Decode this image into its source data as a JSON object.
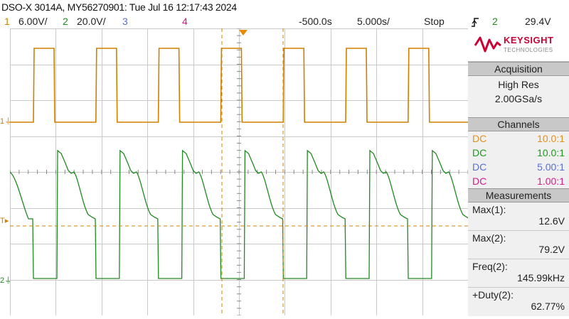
{
  "header": {
    "title": "DSO-X 3014A, MY56270901: Tue Jul 16 12:17:43 2024",
    "ch1_num": "1",
    "ch1_scale": "6.00V/",
    "ch2_num": "2",
    "ch2_scale": "20.0V/",
    "ch3_num": "3",
    "ch4_num": "4",
    "time_offset": "-500.0s",
    "time_scale": "5.000s/",
    "run_state": "Stop",
    "trigger_channel": "2",
    "trigger_level": "29.4V"
  },
  "colors": {
    "ch1": "#d08000",
    "ch2": "#1f8a1f",
    "ch3": "#5a6fd0",
    "ch4": "#cc1a8a",
    "brand": "#cc0033"
  },
  "panel": {
    "brand_name": "KEYSIGHT",
    "brand_sub": "TECHNOLOGIES",
    "acquisition_header": "Acquisition",
    "acq_mode": "High Res",
    "acq_rate": "2.00GSa/s",
    "channels_header": "Channels",
    "channels": [
      {
        "coupling": "DC",
        "probe": "10.0:1"
      },
      {
        "coupling": "DC",
        "probe": "10.0:1"
      },
      {
        "coupling": "DC",
        "probe": "5.00:1"
      },
      {
        "coupling": "DC",
        "probe": "1.00:1"
      }
    ],
    "measurements_header": "Measurements",
    "measurements": [
      {
        "label": "Max(1):",
        "value": "12.6V"
      },
      {
        "label": "Max(2):",
        "value": "79.2V"
      },
      {
        "label": "Freq(2):",
        "value": "145.99kHz"
      },
      {
        "label": "+Duty(2):",
        "value": "62.77%"
      }
    ]
  },
  "markers": {
    "ch1": "1",
    "trig": "T",
    "ch2": "2"
  }
}
